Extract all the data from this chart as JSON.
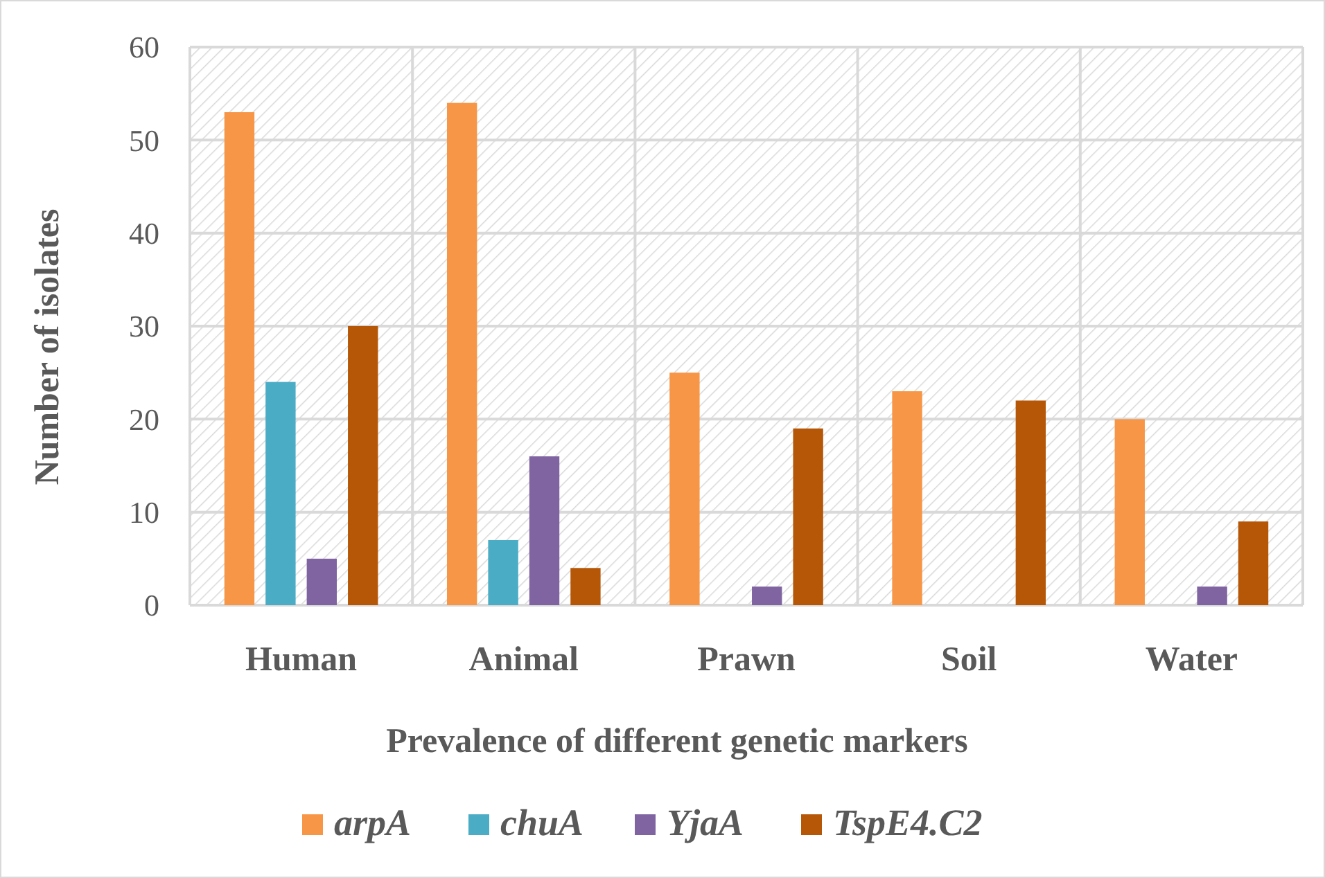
{
  "chart_data": {
    "type": "bar",
    "xlabel": "Prevalence of different genetic markers",
    "ylabel": "Number of isolates",
    "categories": [
      "Human",
      "Animal",
      "Prawn",
      "Soil",
      "Water"
    ],
    "series": [
      {
        "name": "arpA",
        "color": "#f79646",
        "values": [
          53,
          54,
          25,
          23,
          20
        ]
      },
      {
        "name": "chuA",
        "color": "#4bacc6",
        "values": [
          24,
          7,
          0,
          0,
          0
        ]
      },
      {
        "name": "YjaA",
        "color": "#8064a2",
        "values": [
          5,
          16,
          2,
          0,
          2
        ]
      },
      {
        "name": "TspE4.C2",
        "color": "#b65708",
        "values": [
          30,
          4,
          19,
          22,
          9
        ]
      }
    ],
    "ylim": [
      0,
      60
    ],
    "yticks": [
      0,
      10,
      20,
      30,
      40,
      50,
      60
    ],
    "grid": true,
    "legend": "bottom"
  }
}
